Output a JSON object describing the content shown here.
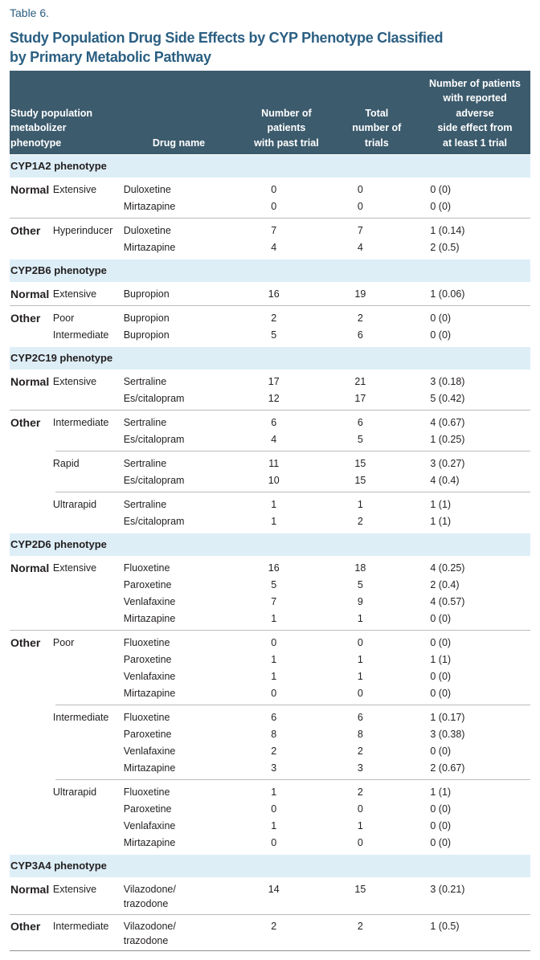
{
  "label": "Table 6.",
  "title": "Study Population Drug Side Effects by CYP Phenotype Classified\nby Primary Metabolic Pathway",
  "columns": [
    "Study population\nmetabolizer\nphenotype",
    "Drug name",
    "Number of\npatients\nwith past trial",
    "Total\nnumber of\ntrials",
    "Number of patients\nwith reported\nadverse\nside effect from\nat least 1 trial"
  ],
  "sections": [
    {
      "title": "CYP1A2 phenotype",
      "groups": [
        {
          "class": "Normal",
          "blocks": [
            [
              {
                "phenotype": "Extensive",
                "drug": "Duloxetine",
                "patients": 0,
                "trials": 0,
                "adverse": "0 (0)"
              },
              {
                "drug": "Mirtazapine",
                "patients": 0,
                "trials": 0,
                "adverse": "0 (0)"
              }
            ]
          ]
        },
        {
          "class": "Other",
          "blocks": [
            [
              {
                "phenotype": "Hyperinducer",
                "drug": "Duloxetine",
                "patients": 7,
                "trials": 7,
                "adverse": "1 (0.14)"
              },
              {
                "drug": "Mirtazapine",
                "patients": 4,
                "trials": 4,
                "adverse": "2 (0.5)"
              }
            ]
          ]
        }
      ]
    },
    {
      "title": "CYP2B6 phenotype",
      "groups": [
        {
          "class": "Normal",
          "blocks": [
            [
              {
                "phenotype": "Extensive",
                "drug": "Bupropion",
                "patients": 16,
                "trials": 19,
                "adverse": "1 (0.06)"
              }
            ]
          ]
        },
        {
          "class": "Other",
          "blocks": [
            [
              {
                "phenotype": "Poor",
                "drug": "Bupropion",
                "patients": 2,
                "trials": 2,
                "adverse": "0 (0)"
              },
              {
                "phenotype": "Intermediate",
                "drug": "Bupropion",
                "patients": 5,
                "trials": 6,
                "adverse": "0 (0)"
              }
            ]
          ]
        }
      ]
    },
    {
      "title": "CYP2C19 phenotype",
      "groups": [
        {
          "class": "Normal",
          "blocks": [
            [
              {
                "phenotype": "Extensive",
                "drug": "Sertraline",
                "patients": 17,
                "trials": 21,
                "adverse": "3 (0.18)"
              },
              {
                "drug": "Es/citalopram",
                "patients": 12,
                "trials": 17,
                "adverse": "5 (0.42)"
              }
            ]
          ]
        },
        {
          "class": "Other",
          "blocks": [
            [
              {
                "phenotype": "Intermediate",
                "drug": "Sertraline",
                "patients": 6,
                "trials": 6,
                "adverse": "4 (0.67)"
              },
              {
                "drug": "Es/citalopram",
                "patients": 4,
                "trials": 5,
                "adverse": "1 (0.25)"
              }
            ],
            [
              {
                "phenotype": "Rapid",
                "drug": "Sertraline",
                "patients": 11,
                "trials": 15,
                "adverse": "3 (0.27)"
              },
              {
                "drug": "Es/citalopram",
                "patients": 10,
                "trials": 15,
                "adverse": "4 (0.4)"
              }
            ],
            [
              {
                "phenotype": "Ultrarapid",
                "drug": "Sertraline",
                "patients": 1,
                "trials": 1,
                "adverse": "1 (1)"
              },
              {
                "drug": "Es/citalopram",
                "patients": 1,
                "trials": 2,
                "adverse": "1 (1)"
              }
            ]
          ]
        }
      ]
    },
    {
      "title": "CYP2D6 phenotype",
      "groups": [
        {
          "class": "Normal",
          "blocks": [
            [
              {
                "phenotype": "Extensive",
                "drug": "Fluoxetine",
                "patients": 16,
                "trials": 18,
                "adverse": "4 (0.25)"
              },
              {
                "drug": "Paroxetine",
                "patients": 5,
                "trials": 5,
                "adverse": "2 (0.4)"
              },
              {
                "drug": "Venlafaxine",
                "patients": 7,
                "trials": 9,
                "adverse": "4 (0.57)"
              },
              {
                "drug": "Mirtazapine",
                "patients": 1,
                "trials": 1,
                "adverse": "0 (0)"
              }
            ]
          ]
        },
        {
          "class": "Other",
          "blocks": [
            [
              {
                "phenotype": "Poor",
                "drug": "Fluoxetine",
                "patients": 0,
                "trials": 0,
                "adverse": "0 (0)"
              },
              {
                "drug": "Paroxetine",
                "patients": 1,
                "trials": 1,
                "adverse": "1 (1)"
              },
              {
                "drug": "Venlafaxine",
                "patients": 1,
                "trials": 1,
                "adverse": "0 (0)"
              },
              {
                "drug": "Mirtazapine",
                "patients": 0,
                "trials": 0,
                "adverse": "0 (0)"
              }
            ],
            [
              {
                "phenotype": "Intermediate",
                "drug": "Fluoxetine",
                "patients": 6,
                "trials": 6,
                "adverse": "1 (0.17)"
              },
              {
                "drug": "Paroxetine",
                "patients": 8,
                "trials": 8,
                "adverse": "3 (0.38)"
              },
              {
                "drug": "Venlafaxine",
                "patients": 2,
                "trials": 2,
                "adverse": "0 (0)"
              },
              {
                "drug": "Mirtazapine",
                "patients": 3,
                "trials": 3,
                "adverse": "2 (0.67)"
              }
            ],
            [
              {
                "phenotype": "Ultrarapid",
                "drug": "Fluoxetine",
                "patients": 1,
                "trials": 2,
                "adverse": "1 (1)"
              },
              {
                "drug": "Paroxetine",
                "patients": 0,
                "trials": 0,
                "adverse": "0 (0)"
              },
              {
                "drug": "Venlafaxine",
                "patients": 1,
                "trials": 1,
                "adverse": "0 (0)"
              },
              {
                "drug": "Mirtazapine",
                "patients": 0,
                "trials": 0,
                "adverse": "0 (0)"
              }
            ]
          ]
        }
      ]
    },
    {
      "title": "CYP3A4 phenotype",
      "groups": [
        {
          "class": "Normal",
          "blocks": [
            [
              {
                "phenotype": "Extensive",
                "drug": "Vilazodone/\ntrazodone",
                "patients": 14,
                "trials": 15,
                "adverse": "3 (0.21)"
              }
            ]
          ]
        },
        {
          "class": "Other",
          "blocks": [
            [
              {
                "phenotype": "Intermediate",
                "drug": "Vilazodone/\ntrazodone",
                "patients": 2,
                "trials": 2,
                "adverse": "1 (0.5)"
              }
            ]
          ]
        }
      ]
    }
  ]
}
